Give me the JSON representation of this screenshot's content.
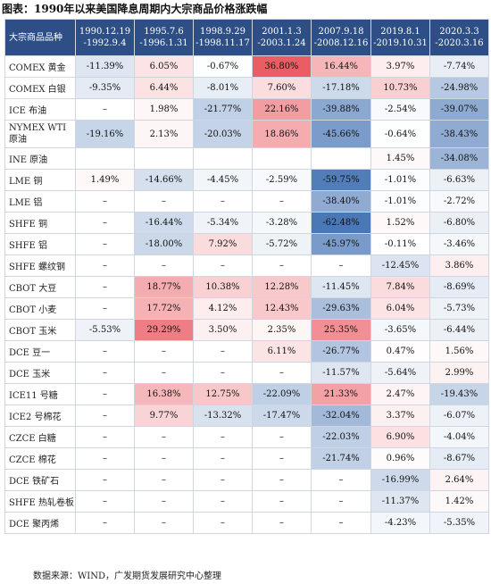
{
  "title": "图表：1990年以来美国降息周期内大宗商品价格涨跌幅",
  "source": "数据来源：WIND，广发期货发展研究中心整理",
  "chart_data": {
    "type": "heatmap",
    "row_header": "大宗商品品种",
    "periods": [
      {
        "start": "1990.12.19",
        "end": "-1992.9.4"
      },
      {
        "start": "1995.7.6",
        "end": "-1996.1.31"
      },
      {
        "start": "1998.9.29",
        "end": "-1998.11.17"
      },
      {
        "start": "2001.1.3",
        "end": "-2003.1.24"
      },
      {
        "start": "2007.9.18",
        "end": "-2008.12.16"
      },
      {
        "start": "2019.8.1",
        "end": "-2019.10.31"
      },
      {
        "start": "2020.3.3",
        "end": "-2020.3.16"
      }
    ],
    "rows": [
      {
        "name": "COMEX 黄金",
        "values": [
          "-11.39%",
          "6.05%",
          "-0.67%",
          "36.80%",
          "16.44%",
          "3.97%",
          "-7.74%"
        ]
      },
      {
        "name": "COMEX 白银",
        "values": [
          "-9.35%",
          "6.44%",
          "-8.01%",
          "7.60%",
          "-17.18%",
          "10.73%",
          "-24.98%"
        ]
      },
      {
        "name": "ICE 布油",
        "values": [
          "–",
          "1.98%",
          "-21.77%",
          "22.16%",
          "-39.88%",
          "-2.54%",
          "-39.07%"
        ]
      },
      {
        "name": "NYMEX WTI 原油",
        "values": [
          "-19.16%",
          "2.13%",
          "-20.03%",
          "18.86%",
          "-45.66%",
          "-0.64%",
          "-38.43%"
        ]
      },
      {
        "name": "INE 原油",
        "values": [
          "",
          "",
          "",
          "",
          "",
          "1.45%",
          "-34.08%"
        ]
      },
      {
        "name": "LME 铜",
        "values": [
          "1.49%",
          "-14.66%",
          "-4.45%",
          "-2.59%",
          "-59.75%",
          "-1.01%",
          "-6.63%"
        ]
      },
      {
        "name": "LME 铝",
        "values": [
          "–",
          "–",
          "–",
          "–",
          "-38.40%",
          "-1.01%",
          "-2.72%"
        ]
      },
      {
        "name": "SHFE 铜",
        "values": [
          "–",
          "-16.44%",
          "-5.34%",
          "-3.28%",
          "-62.48%",
          "1.52%",
          "-6.80%"
        ]
      },
      {
        "name": "SHFE 铝",
        "values": [
          "–",
          "-18.00%",
          "7.92%",
          "-5.72%",
          "-45.97%",
          "-0.11%",
          "-3.46%"
        ]
      },
      {
        "name": "SHFE 螺纹钢",
        "values": [
          "–",
          "–",
          "–",
          "–",
          "–",
          "-12.45%",
          "3.86%"
        ]
      },
      {
        "name": "CBOT 大豆",
        "values": [
          "–",
          "18.77%",
          "10.38%",
          "12.28%",
          "-11.45%",
          "7.84%",
          "-8.69%"
        ]
      },
      {
        "name": "CBOT 小麦",
        "values": [
          "–",
          "17.72%",
          "4.12%",
          "12.43%",
          "-29.63%",
          "6.04%",
          "-5.73%"
        ]
      },
      {
        "name": "CBOT 玉米",
        "values": [
          "-5.53%",
          "29.29%",
          "3.50%",
          "2.35%",
          "25.35%",
          "-3.65%",
          "-6.44%"
        ]
      },
      {
        "name": "DCE 豆一",
        "values": [
          "–",
          "–",
          "–",
          "6.11%",
          "-26.77%",
          "0.47%",
          "1.56%"
        ]
      },
      {
        "name": "DCE 玉米",
        "values": [
          "–",
          "–",
          "–",
          "–",
          "-11.57%",
          "-5.64%",
          "2.99%"
        ]
      },
      {
        "name": "ICE11 号糖",
        "values": [
          "–",
          "16.38%",
          "12.75%",
          "-22.09%",
          "21.33%",
          "2.47%",
          "-19.43%"
        ]
      },
      {
        "name": "ICE2 号棉花",
        "values": [
          "–",
          "9.77%",
          "-13.32%",
          "-17.47%",
          "-32.04%",
          "3.37%",
          "-6.07%"
        ]
      },
      {
        "name": "CZCE 白糖",
        "values": [
          "–",
          "–",
          "–",
          "–",
          "-22.03%",
          "6.90%",
          "-4.04%"
        ]
      },
      {
        "name": "CZCE 棉花",
        "values": [
          "–",
          "–",
          "–",
          "–",
          "-21.74%",
          "0.96%",
          "-8.67%"
        ]
      },
      {
        "name": "DCE 铁矿石",
        "values": [
          "–",
          "–",
          "–",
          "–",
          "–",
          "-16.99%",
          "2.64%"
        ]
      },
      {
        "name": "SHFE 热轧卷板",
        "values": [
          "–",
          "–",
          "–",
          "–",
          "–",
          "-11.37%",
          "1.42%"
        ]
      },
      {
        "name": "DCE 聚丙烯",
        "values": [
          "–",
          "–",
          "–",
          "–",
          "–",
          "-4.23%",
          "-5.35%"
        ]
      }
    ],
    "colors": {
      "header_bg": "#2d4f86",
      "positive_max": "#e9545b",
      "negative_max": "#4a77b6",
      "neutral": "#ffffff"
    }
  }
}
